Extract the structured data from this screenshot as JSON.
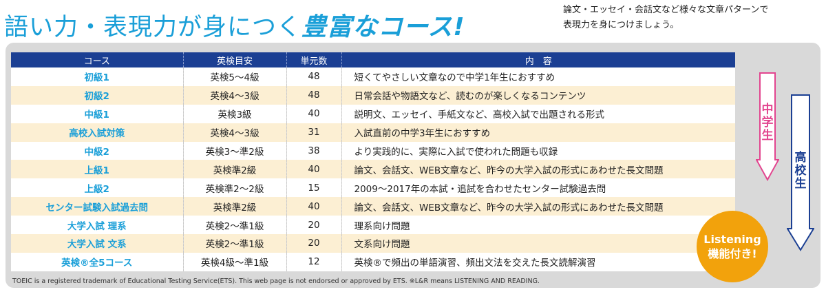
{
  "header": {
    "title_main": "語い力・表現力が身につく",
    "title_accent": "豊富なコース!",
    "subtitle_line1": "論文・エッセイ・会話文など様々な文章パターンで",
    "subtitle_line2": "表現力を身につけましょう。"
  },
  "table": {
    "headers": [
      "コース",
      "英検目安",
      "単元数",
      "内　容"
    ],
    "rows": [
      {
        "course": "初級1",
        "eiken": "英検5～4級",
        "units": "48",
        "content": "短くてやさしい文章なので中学1年生におすすめ"
      },
      {
        "course": "初級2",
        "eiken": "英検4～3級",
        "units": "48",
        "content": "日常会話や物語文など、読むのが楽しくなるコンテンツ"
      },
      {
        "course": "中級1",
        "eiken": "英検3級",
        "units": "40",
        "content": "説明文、エッセイ、手紙文など、高校入試で出題される形式"
      },
      {
        "course": "高校入試対策",
        "eiken": "英検4～3級",
        "units": "31",
        "content": "入試直前の中学3年生におすすめ"
      },
      {
        "course": "中級2",
        "eiken": "英検3～準2級",
        "units": "38",
        "content": "より実践的に、実際に入試で使われた問題も収録"
      },
      {
        "course": "上級1",
        "eiken": "英検準2級",
        "units": "40",
        "content": "論文、会話文、WEB文章など、昨今の大学入試の形式にあわせた長文問題"
      },
      {
        "course": "上級2",
        "eiken": "英検準2～2級",
        "units": "15",
        "content": "2009～2017年の本試・追試を合わせたセンター試験過去問"
      },
      {
        "course": "センター試験入試過去問",
        "eiken": "英検準2級",
        "units": "40",
        "content": "論文、会話文、WEB文章など、昨今の大学入試の形式にあわせた長文問題"
      },
      {
        "course": "大学入試 理系",
        "eiken": "英検2～準1級",
        "units": "20",
        "content": "理系向け問題"
      },
      {
        "course": "大学入試 文系",
        "eiken": "英検2～準1級",
        "units": "20",
        "content": "文系向け問題"
      },
      {
        "course": "英検®全5コース",
        "eiken": "英検4級～準1級",
        "units": "12",
        "content": "英検®で頻出の単語演習、頻出文法を交えた長文読解演習"
      }
    ]
  },
  "arrows": {
    "junior_high": "中学生",
    "high_school": "高校生"
  },
  "badge": {
    "line1": "Listening",
    "line2": "機能付き!"
  },
  "footer": "TOEIC is a registered trademark of Educational Testing Service(ETS). This web page is not endorsed or approved by ETS. ※L&R means LISTENING AND READING.",
  "colors": {
    "title": "#1a9fd8",
    "header_bg": "#1b3f93",
    "row_alt": "#fcefd3",
    "pink_arrow": "#e2458f",
    "navy_arrow": "#1b3f93",
    "badge": "#f2a20c"
  }
}
